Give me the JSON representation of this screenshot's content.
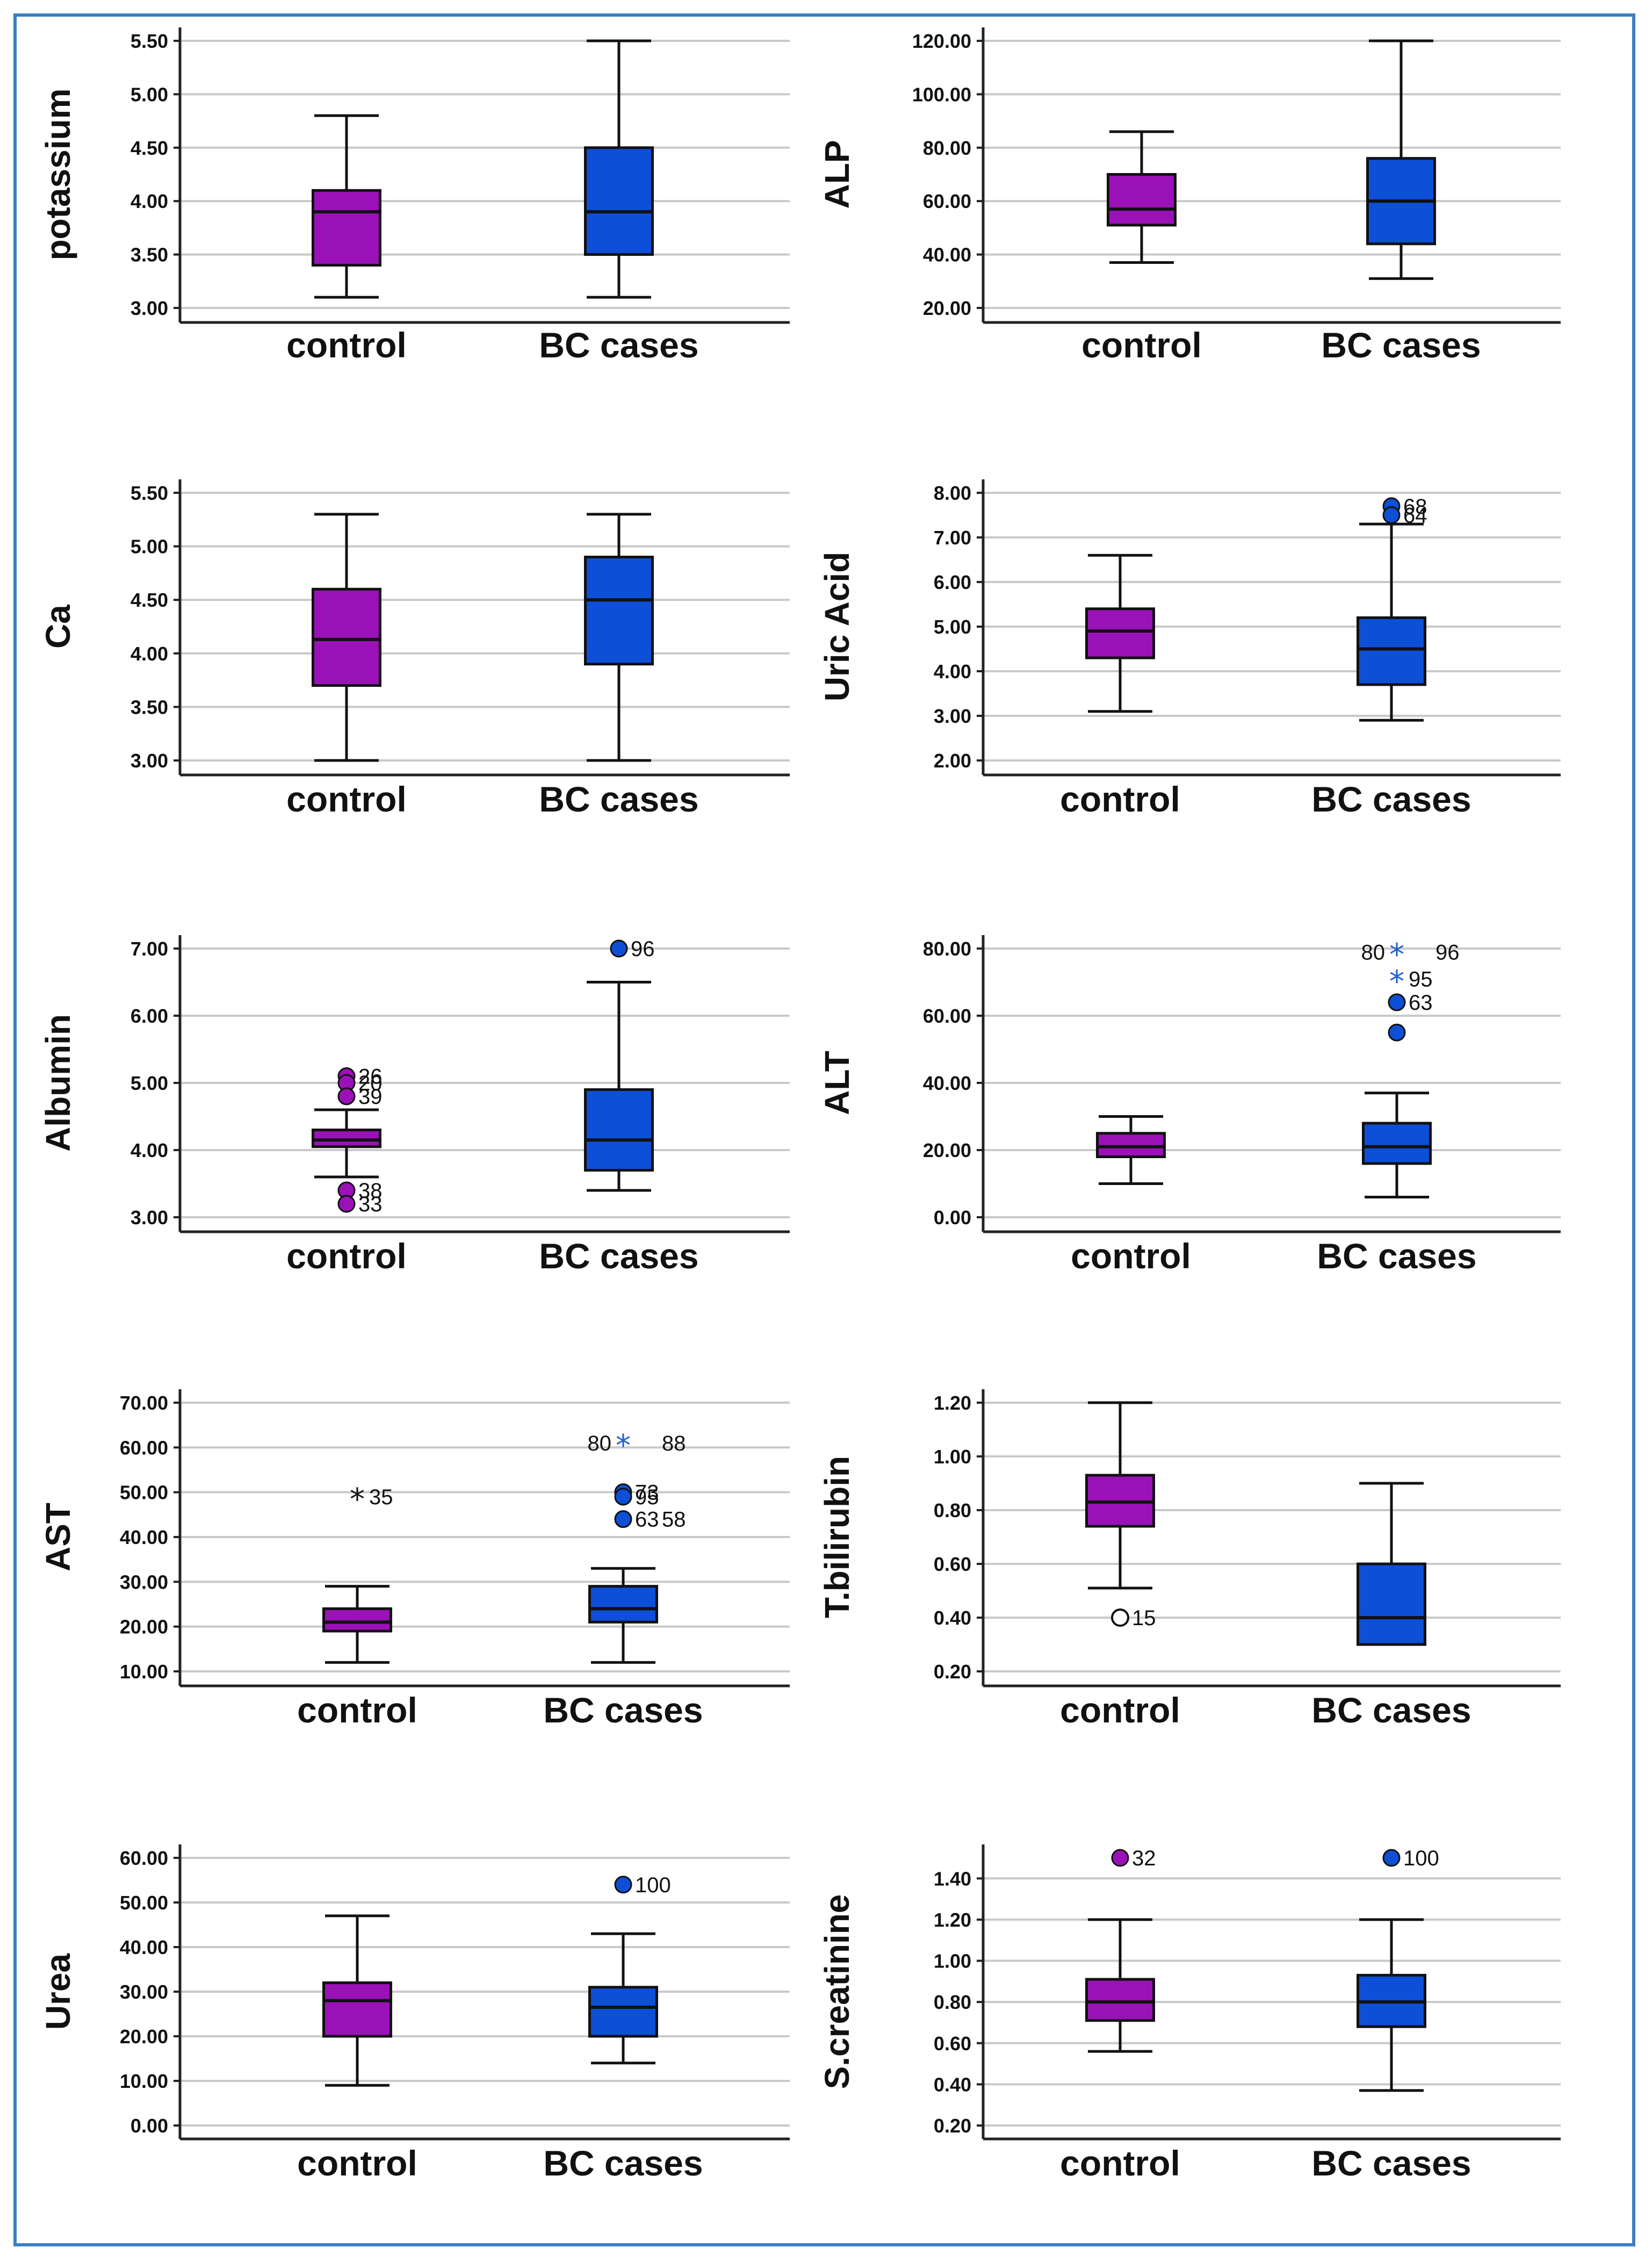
{
  "figure": {
    "colors": {
      "control": "#9b11b8",
      "bc": "#0d4fd6",
      "grid": "#c9c9c9",
      "frame": "#3b7fc4",
      "star": "#1f5fd6"
    }
  },
  "chart_data": [
    {
      "type": "boxplot",
      "ylabel": "potassium",
      "categories": [
        "control",
        "BC cases"
      ],
      "ylim": [
        3.0,
        5.5
      ],
      "ticks": [
        "3.00",
        "3.50",
        "4.00",
        "4.50",
        "5.00",
        "5.50"
      ],
      "boxes": [
        {
          "group": "control",
          "min": 3.1,
          "q1": 3.4,
          "median": 3.9,
          "q3": 4.1,
          "max": 4.8
        },
        {
          "group": "BC cases",
          "min": 3.1,
          "q1": 3.5,
          "median": 3.9,
          "q3": 4.5,
          "max": 5.5
        }
      ],
      "outliers": []
    },
    {
      "type": "boxplot",
      "ylabel": "ALP",
      "categories": [
        "control",
        "BC cases"
      ],
      "ylim": [
        20,
        120
      ],
      "ticks": [
        "20.00",
        "40.00",
        "60.00",
        "80.00",
        "100.00",
        "120.00"
      ],
      "boxes": [
        {
          "group": "control",
          "min": 37,
          "q1": 51,
          "median": 57,
          "q3": 70,
          "max": 86
        },
        {
          "group": "BC cases",
          "min": 31,
          "q1": 44,
          "median": 60,
          "q3": 76,
          "max": 120
        }
      ],
      "outliers": []
    },
    {
      "type": "boxplot",
      "ylabel": "Ca",
      "categories": [
        "control",
        "BC cases"
      ],
      "ylim": [
        3.0,
        5.5
      ],
      "ticks": [
        "3.00",
        "3.50",
        "4.00",
        "4.50",
        "5.00",
        "5.50"
      ],
      "boxes": [
        {
          "group": "control",
          "min": 3.0,
          "q1": 3.7,
          "median": 4.13,
          "q3": 4.6,
          "max": 5.3
        },
        {
          "group": "BC cases",
          "min": 3.0,
          "q1": 3.9,
          "median": 4.5,
          "q3": 4.9,
          "max": 5.3
        }
      ],
      "outliers": []
    },
    {
      "type": "boxplot",
      "ylabel": "Uric Acid",
      "categories": [
        "control",
        "BC cases"
      ],
      "ylim": [
        2.0,
        8.0
      ],
      "ticks": [
        "2.00",
        "3.00",
        "4.00",
        "5.00",
        "6.00",
        "7.00",
        "8.00"
      ],
      "boxes": [
        {
          "group": "control",
          "min": 3.1,
          "q1": 4.3,
          "median": 4.9,
          "q3": 5.4,
          "max": 6.6
        },
        {
          "group": "BC cases",
          "min": 2.9,
          "q1": 3.7,
          "median": 4.5,
          "q3": 5.2,
          "max": 7.3
        }
      ],
      "outliers": [
        {
          "group": "BC cases",
          "value": 7.7,
          "label": "68",
          "marker": "filled"
        },
        {
          "group": "BC cases",
          "value": 7.5,
          "label": "64",
          "marker": "filled"
        }
      ]
    },
    {
      "type": "boxplot",
      "ylabel": "Albumin",
      "categories": [
        "control",
        "BC cases"
      ],
      "ylim": [
        3.0,
        7.0
      ],
      "ticks": [
        "3.00",
        "4.00",
        "5.00",
        "6.00",
        "7.00"
      ],
      "boxes": [
        {
          "group": "control",
          "min": 3.6,
          "q1": 4.05,
          "median": 4.15,
          "q3": 4.3,
          "max": 4.6
        },
        {
          "group": "BC cases",
          "min": 3.4,
          "q1": 3.7,
          "median": 4.15,
          "q3": 4.9,
          "max": 6.5
        }
      ],
      "outliers": [
        {
          "group": "control",
          "value": 5.1,
          "label": "26",
          "marker": "filled"
        },
        {
          "group": "control",
          "value": 5.0,
          "label": "20",
          "marker": "filled"
        },
        {
          "group": "control",
          "value": 4.8,
          "label": "39",
          "marker": "filled"
        },
        {
          "group": "control",
          "value": 3.4,
          "label": "38",
          "marker": "filled"
        },
        {
          "group": "control",
          "value": 3.2,
          "label": "33",
          "marker": "filled"
        },
        {
          "group": "BC cases",
          "value": 7.0,
          "label": "96",
          "marker": "filled"
        }
      ]
    },
    {
      "type": "boxplot",
      "ylabel": "ALT",
      "categories": [
        "control",
        "BC cases"
      ],
      "ylim": [
        0,
        80
      ],
      "ticks": [
        "0.00",
        "20.00",
        "40.00",
        "60.00",
        "80.00"
      ],
      "boxes": [
        {
          "group": "control",
          "min": 10,
          "q1": 18,
          "median": 21,
          "q3": 25,
          "max": 30
        },
        {
          "group": "BC cases",
          "min": 6,
          "q1": 16,
          "median": 21,
          "q3": 28,
          "max": 37
        }
      ],
      "outliers": [
        {
          "group": "BC cases",
          "value": 79,
          "label": "80",
          "marker": "star"
        },
        {
          "group": "BC cases",
          "value": 79,
          "label": "96",
          "marker": "none"
        },
        {
          "group": "BC cases",
          "value": 71,
          "label": "95",
          "marker": "star"
        },
        {
          "group": "BC cases",
          "value": 64,
          "label": "63",
          "marker": "filled"
        },
        {
          "group": "BC cases",
          "value": 55,
          "label": "",
          "marker": "filled"
        }
      ]
    },
    {
      "type": "boxplot",
      "ylabel": "AST",
      "categories": [
        "control",
        "BC cases"
      ],
      "ylim": [
        10,
        70
      ],
      "ticks": [
        "10.00",
        "20.00",
        "30.00",
        "40.00",
        "50.00",
        "60.00",
        "70.00"
      ],
      "boxes": [
        {
          "group": "control",
          "min": 12,
          "q1": 19,
          "median": 21,
          "q3": 24,
          "max": 29
        },
        {
          "group": "BC cases",
          "min": 12,
          "q1": 21,
          "median": 24,
          "q3": 29,
          "max": 33
        }
      ],
      "outliers": [
        {
          "group": "control",
          "value": 49,
          "label": "35",
          "marker": "star"
        },
        {
          "group": "BC cases",
          "value": 61,
          "label": "80",
          "marker": "star"
        },
        {
          "group": "BC cases",
          "value": 61,
          "label": "88",
          "marker": "none"
        },
        {
          "group": "BC cases",
          "value": 50,
          "label": "73",
          "marker": "filled"
        },
        {
          "group": "BC cases",
          "value": 49,
          "label": "95",
          "marker": "filled"
        },
        {
          "group": "BC cases",
          "value": 44,
          "label": "63",
          "marker": "filled"
        },
        {
          "group": "BC cases",
          "value": 44,
          "label": "58",
          "marker": "none"
        }
      ]
    },
    {
      "type": "boxplot",
      "ylabel": "T.bilirubin",
      "categories": [
        "control",
        "BC cases"
      ],
      "ylim": [
        0.2,
        1.2
      ],
      "ticks": [
        "0.20",
        "0.40",
        "0.60",
        "0.80",
        "1.00",
        "1.20"
      ],
      "boxes": [
        {
          "group": "control",
          "min": 0.51,
          "q1": 0.74,
          "median": 0.83,
          "q3": 0.93,
          "max": 1.2
        },
        {
          "group": "BC cases",
          "min": 0.3,
          "q1": 0.3,
          "median": 0.4,
          "q3": 0.6,
          "max": 0.9
        }
      ],
      "outliers": [
        {
          "group": "control",
          "value": 0.4,
          "label": "15",
          "marker": "open"
        }
      ]
    },
    {
      "type": "boxplot",
      "ylabel": "Urea",
      "categories": [
        "control",
        "BC cases"
      ],
      "ylim": [
        0,
        60
      ],
      "ticks": [
        "0.00",
        "10.00",
        "20.00",
        "30.00",
        "40.00",
        "50.00",
        "60.00"
      ],
      "boxes": [
        {
          "group": "control",
          "min": 9,
          "q1": 20,
          "median": 28,
          "q3": 32,
          "max": 47
        },
        {
          "group": "BC cases",
          "min": 14,
          "q1": 20,
          "median": 26.5,
          "q3": 31,
          "max": 43
        }
      ],
      "outliers": [
        {
          "group": "BC cases",
          "value": 54,
          "label": "100",
          "marker": "filled"
        }
      ]
    },
    {
      "type": "boxplot",
      "ylabel": "S.creatinine",
      "categories": [
        "control",
        "BC cases"
      ],
      "ylim": [
        0.2,
        1.5
      ],
      "ticks": [
        "0.20",
        "0.40",
        "0.60",
        "0.80",
        "1.00",
        "1.20",
        "1.40"
      ],
      "boxes": [
        {
          "group": "control",
          "min": 0.56,
          "q1": 0.71,
          "median": 0.8,
          "q3": 0.91,
          "max": 1.2
        },
        {
          "group": "BC cases",
          "min": 0.37,
          "q1": 0.68,
          "median": 0.8,
          "q3": 0.93,
          "max": 1.2
        }
      ],
      "outliers": [
        {
          "group": "control",
          "value": 1.5,
          "label": "32",
          "marker": "filled"
        },
        {
          "group": "BC cases",
          "value": 1.5,
          "label": "100",
          "marker": "filled"
        }
      ]
    }
  ]
}
